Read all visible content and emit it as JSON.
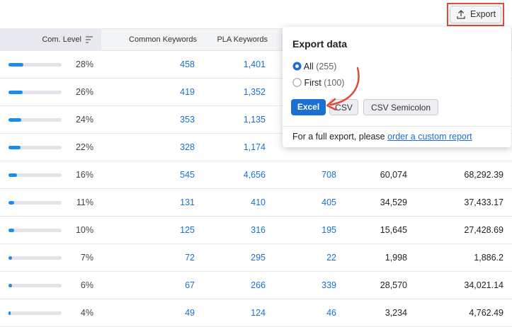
{
  "toolbar": {
    "export_button": "Export"
  },
  "table": {
    "headers": [
      "Com. Level",
      "Common Keywords",
      "PLA Keywords"
    ],
    "rows": [
      {
        "level": 28,
        "level_label": "28%",
        "cells": [
          "458",
          "1,401",
          null,
          null,
          null
        ]
      },
      {
        "level": 26,
        "level_label": "26%",
        "cells": [
          "419",
          "1,352",
          null,
          null,
          null
        ]
      },
      {
        "level": 24,
        "level_label": "24%",
        "cells": [
          "353",
          "1,135",
          null,
          null,
          null
        ]
      },
      {
        "level": 22,
        "level_label": "22%",
        "cells": [
          "328",
          "1,174",
          null,
          null,
          null
        ]
      },
      {
        "level": 16,
        "level_label": "16%",
        "cells": [
          "545",
          "4,656",
          "708",
          "60,074",
          "68,292.39"
        ]
      },
      {
        "level": 11,
        "level_label": "11%",
        "cells": [
          "131",
          "410",
          "405",
          "34,529",
          "37,433.17"
        ]
      },
      {
        "level": 10,
        "level_label": "10%",
        "cells": [
          "125",
          "316",
          "195",
          "15,645",
          "27,428.69"
        ]
      },
      {
        "level": 7,
        "level_label": "7%",
        "cells": [
          "72",
          "295",
          "22",
          "1,998",
          "1,886.2"
        ]
      },
      {
        "level": 6,
        "level_label": "6%",
        "cells": [
          "67",
          "266",
          "339",
          "28,570",
          "34,021.14"
        ]
      },
      {
        "level": 4,
        "level_label": "4%",
        "cells": [
          "49",
          "124",
          "46",
          "3,234",
          "4,762.49"
        ]
      }
    ]
  },
  "export_popup": {
    "title": "Export data",
    "options": [
      {
        "label": "All",
        "count": "(255)"
      },
      {
        "label": "First",
        "count": "(100)"
      }
    ],
    "formats": [
      "Excel",
      "CSV",
      "CSV Semicolon"
    ],
    "footer_text": "For a full export, please",
    "footer_link": "order a custom report"
  }
}
